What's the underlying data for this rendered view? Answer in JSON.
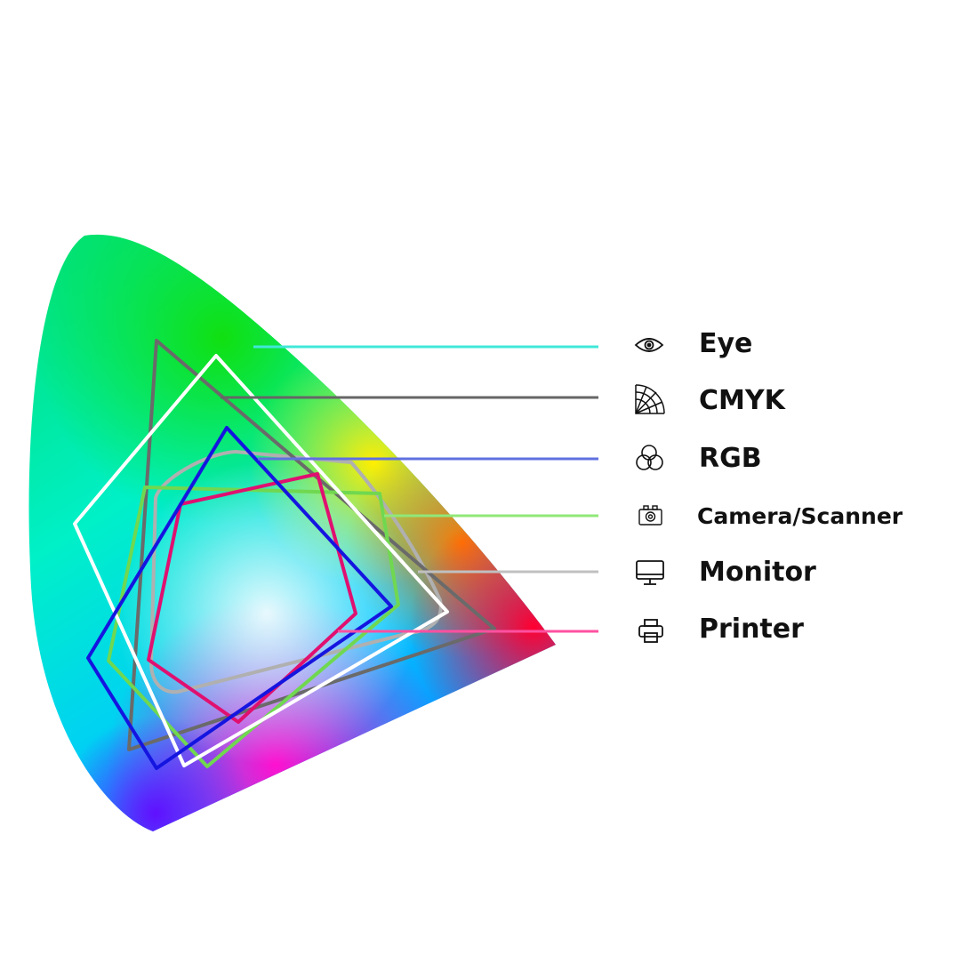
{
  "diagram": {
    "legend": [
      {
        "id": "eye",
        "label": "Eye",
        "color": "#40e8d8",
        "icon": "eye-icon"
      },
      {
        "id": "cmyk",
        "label": "CMYK",
        "color": "#666666",
        "icon": "color-fan-icon"
      },
      {
        "id": "rgb",
        "label": "RGB",
        "color": "#6070e0",
        "icon": "rgb-circles-icon"
      },
      {
        "id": "camera",
        "label": "Camera/Scanner",
        "color": "#90e878",
        "icon": "camera-icon"
      },
      {
        "id": "monitor",
        "label": "Monitor",
        "color": "#c0c0c0",
        "icon": "monitor-icon"
      },
      {
        "id": "printer",
        "label": "Printer",
        "color": "#ff50a0",
        "icon": "printer-icon"
      }
    ],
    "gamut_outlines": {
      "cmyk": "#6a6a6a",
      "rgb": "#1515e0",
      "camera": "#70d850",
      "monitor": "#b0b0b0",
      "printer": "#e01070",
      "white": "#ffffff"
    }
  }
}
